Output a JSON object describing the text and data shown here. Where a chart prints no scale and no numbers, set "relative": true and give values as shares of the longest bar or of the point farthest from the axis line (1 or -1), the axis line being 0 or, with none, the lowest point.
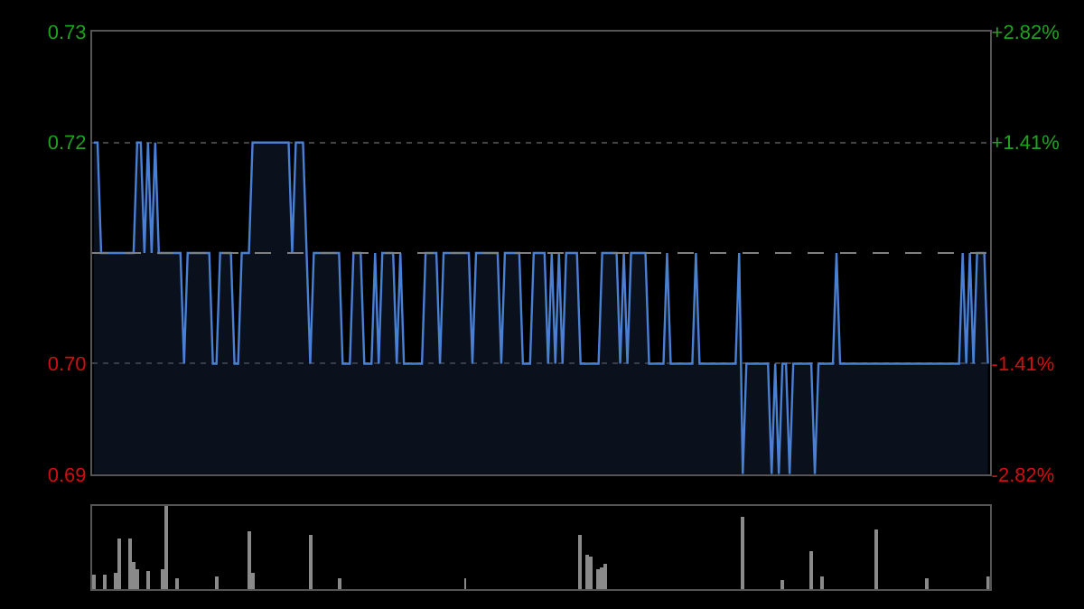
{
  "chart_data": [
    {
      "type": "area",
      "color": "#4a80d4",
      "categories": [
        null,
        null,
        null,
        null,
        null,
        null,
        null,
        null,
        null,
        null,
        null,
        null,
        null,
        null,
        null,
        null,
        null,
        null,
        null,
        null,
        null,
        null,
        null,
        null,
        null,
        null,
        null,
        null,
        null,
        null,
        null,
        null,
        null,
        null,
        null,
        null,
        null,
        null,
        null,
        null,
        null,
        null,
        null,
        null,
        null,
        null,
        null,
        null,
        null,
        null,
        null,
        null,
        null,
        null,
        null,
        null,
        null,
        null,
        null,
        null,
        null,
        null,
        null,
        null,
        null,
        null,
        null,
        null,
        null,
        null,
        null,
        null,
        null,
        null,
        null,
        null,
        null,
        null,
        null,
        null,
        null,
        null,
        null,
        null,
        null,
        null,
        null,
        null,
        null,
        null,
        null,
        null,
        null,
        null,
        null,
        null,
        null,
        null,
        null,
        null,
        null,
        null,
        null,
        null,
        null,
        null,
        null,
        null,
        null,
        null,
        null,
        null,
        null,
        null,
        null,
        null,
        null,
        null,
        null,
        null,
        null,
        null,
        null,
        null,
        null,
        null,
        null,
        null,
        null,
        null,
        null,
        null,
        null,
        null,
        null,
        null,
        null,
        null,
        null,
        null,
        null,
        null,
        null,
        null,
        null,
        null,
        null,
        null,
        null,
        null,
        null,
        null,
        null,
        null,
        null,
        null,
        null,
        null,
        null,
        null,
        null,
        null,
        null,
        null,
        null,
        null,
        null,
        null,
        null,
        null,
        null,
        null,
        null,
        null,
        null,
        null,
        null,
        null,
        null,
        null,
        null,
        null,
        null,
        null,
        null,
        null,
        null,
        null,
        null,
        null,
        null,
        null,
        null,
        null,
        null,
        null,
        null,
        null,
        null,
        null,
        null,
        null,
        null,
        null,
        null,
        null,
        null,
        null,
        null,
        null,
        null,
        null,
        null,
        null,
        null,
        null,
        null,
        null,
        null,
        null,
        null,
        null,
        null,
        null,
        null,
        null,
        null,
        null,
        null,
        null,
        null,
        null,
        null,
        null,
        null,
        null,
        null,
        null,
        null,
        null,
        null,
        null,
        null,
        null,
        null,
        null,
        null,
        null,
        null
      ],
      "values": [
        0.72,
        0.72,
        0.71,
        0.71,
        0.71,
        0.71,
        0.71,
        0.71,
        0.71,
        0.71,
        0.71,
        0.71,
        0.72,
        0.72,
        0.71,
        0.72,
        0.71,
        0.72,
        0.71,
        0.71,
        0.71,
        0.71,
        0.71,
        0.71,
        0.71,
        0.7,
        0.71,
        0.71,
        0.71,
        0.71,
        0.71,
        0.71,
        0.71,
        0.7,
        0.7,
        0.71,
        0.71,
        0.71,
        0.71,
        0.7,
        0.7,
        0.71,
        0.71,
        0.71,
        0.72,
        0.72,
        0.72,
        0.72,
        0.72,
        0.72,
        0.72,
        0.72,
        0.72,
        0.72,
        0.72,
        0.71,
        0.72,
        0.72,
        0.72,
        0.71,
        0.7,
        0.71,
        0.71,
        0.71,
        0.71,
        0.71,
        0.71,
        0.71,
        0.71,
        0.7,
        0.7,
        0.7,
        0.71,
        0.71,
        0.71,
        0.7,
        0.7,
        0.7,
        0.71,
        0.7,
        0.71,
        0.71,
        0.71,
        0.71,
        0.7,
        0.71,
        0.7,
        0.7,
        0.7,
        0.7,
        0.7,
        0.7,
        0.71,
        0.71,
        0.71,
        0.71,
        0.7,
        0.71,
        0.71,
        0.71,
        0.71,
        0.71,
        0.71,
        0.71,
        0.71,
        0.7,
        0.71,
        0.71,
        0.71,
        0.71,
        0.71,
        0.71,
        0.71,
        0.7,
        0.71,
        0.71,
        0.71,
        0.71,
        0.71,
        0.7,
        0.7,
        0.7,
        0.71,
        0.71,
        0.71,
        0.71,
        0.7,
        0.71,
        0.7,
        0.71,
        0.7,
        0.71,
        0.71,
        0.71,
        0.71,
        0.7,
        0.7,
        0.7,
        0.7,
        0.7,
        0.7,
        0.71,
        0.71,
        0.71,
        0.71,
        0.71,
        0.7,
        0.71,
        0.7,
        0.71,
        0.71,
        0.71,
        0.71,
        0.71,
        0.7,
        0.7,
        0.7,
        0.7,
        0.7,
        0.71,
        0.7,
        0.7,
        0.7,
        0.7,
        0.7,
        0.7,
        0.7,
        0.71,
        0.7,
        0.7,
        0.7,
        0.7,
        0.7,
        0.7,
        0.7,
        0.7,
        0.7,
        0.7,
        0.7,
        0.71,
        0.69,
        0.7,
        0.7,
        0.7,
        0.7,
        0.7,
        0.7,
        0.7,
        0.69,
        0.7,
        0.69,
        0.7,
        0.7,
        0.69,
        0.7,
        0.7,
        0.7,
        0.7,
        0.7,
        0.7,
        0.69,
        0.7,
        0.7,
        0.7,
        0.7,
        0.7,
        0.71,
        0.7,
        0.7,
        0.7,
        0.7,
        0.7,
        0.7,
        0.7,
        0.7,
        0.7,
        0.7,
        0.7,
        0.7,
        0.7,
        0.7,
        0.7,
        0.7,
        0.7,
        0.7,
        0.7,
        0.7,
        0.7,
        0.7,
        0.7,
        0.7,
        0.7,
        0.7,
        0.7,
        0.7,
        0.7,
        0.7,
        0.7,
        0.7,
        0.7,
        0.7,
        0.71,
        0.7,
        0.71,
        0.7,
        0.71,
        0.71,
        0.71,
        0.7
      ],
      "ylim": [
        0.69,
        0.73
      ],
      "yticks": [
        {
          "value": 0.73,
          "label": "0.73"
        },
        {
          "value": 0.72,
          "label": "0.72"
        },
        {
          "value": 0.7,
          "label": "0.70"
        },
        {
          "value": 0.69,
          "label": "0.69"
        }
      ],
      "y2lim": [
        -2.82,
        2.82
      ],
      "y2ticks": [
        {
          "value": 2.82,
          "label": "+2.82%"
        },
        {
          "value": 1.41,
          "label": "+1.41%"
        },
        {
          "value": -1.41,
          "label": "-1.41%"
        },
        {
          "value": -2.82,
          "label": "-2.82%"
        }
      ],
      "ref_lines": [
        {
          "axis": "y",
          "value": 0.71,
          "color": "#808080",
          "line_style": "dashed"
        }
      ],
      "grid": "y"
    },
    {
      "type": "bar",
      "relative": true,
      "color": "#8a8a8a",
      "categories": [
        null,
        null,
        null,
        null,
        null,
        null,
        null,
        null,
        null,
        null,
        null,
        null,
        null,
        null,
        null,
        null,
        null,
        null,
        null,
        null,
        null,
        null,
        null,
        null,
        null,
        null,
        null,
        null,
        null,
        null,
        null,
        null,
        null,
        null,
        null,
        null,
        null,
        null,
        null,
        null,
        null,
        null,
        null,
        null,
        null,
        null,
        null,
        null,
        null,
        null,
        null,
        null,
        null,
        null,
        null,
        null,
        null,
        null,
        null,
        null,
        null,
        null,
        null,
        null,
        null,
        null,
        null,
        null,
        null,
        null,
        null,
        null,
        null,
        null,
        null,
        null,
        null,
        null,
        null,
        null,
        null,
        null,
        null,
        null,
        null,
        null,
        null,
        null,
        null,
        null,
        null,
        null,
        null,
        null,
        null,
        null,
        null,
        null,
        null,
        null,
        null,
        null,
        null,
        null,
        null,
        null,
        null,
        null,
        null,
        null,
        null,
        null,
        null,
        null,
        null,
        null,
        null,
        null,
        null,
        null,
        null,
        null,
        null,
        null,
        null,
        null,
        null,
        null,
        null,
        null,
        null,
        null,
        null,
        null,
        null,
        null,
        null,
        null,
        null,
        null,
        null,
        null,
        null,
        null,
        null,
        null,
        null,
        null,
        null,
        null,
        null,
        null,
        null,
        null,
        null,
        null,
        null,
        null,
        null,
        null,
        null,
        null,
        null,
        null,
        null,
        null,
        null,
        null,
        null,
        null,
        null,
        null,
        null,
        null,
        null,
        null,
        null,
        null,
        null,
        null,
        null,
        null,
        null,
        null,
        null,
        null,
        null,
        null,
        null,
        null,
        null,
        null,
        null,
        null,
        null,
        null,
        null,
        null,
        null,
        null,
        null,
        null,
        null,
        null,
        null,
        null,
        null,
        null,
        null,
        null,
        null,
        null,
        null,
        null,
        null,
        null,
        null,
        null,
        null,
        null,
        null,
        null,
        null,
        null,
        null,
        null,
        null,
        null,
        null,
        null,
        null,
        null,
        null,
        null,
        null,
        null,
        null,
        null,
        null,
        null,
        null,
        null,
        null,
        null,
        null,
        null,
        null,
        null,
        null
      ],
      "values": [
        0.17,
        null,
        null,
        0.17,
        null,
        null,
        0.2,
        0.62,
        null,
        null,
        0.6,
        0.32,
        0.25,
        null,
        null,
        0.22,
        null,
        null,
        null,
        0.25,
        1.0,
        null,
        null,
        0.13,
        null,
        null,
        null,
        null,
        null,
        null,
        null,
        null,
        null,
        null,
        0.15,
        null,
        null,
        null,
        null,
        null,
        null,
        null,
        null,
        0.7,
        0.2,
        null,
        null,
        null,
        null,
        null,
        null,
        null,
        null,
        null,
        null,
        null,
        null,
        null,
        null,
        null,
        0.65,
        null,
        null,
        null,
        null,
        null,
        null,
        null,
        0.13,
        null,
        null,
        null,
        null,
        null,
        null,
        null,
        null,
        null,
        null,
        null,
        null,
        null,
        null,
        null,
        null,
        null,
        null,
        null,
        null,
        null,
        null,
        null,
        null,
        null,
        null,
        null,
        null,
        null,
        null,
        null,
        null,
        null,
        null,
        0.13,
        null,
        null,
        null,
        null,
        null,
        null,
        null,
        null,
        null,
        null,
        null,
        null,
        null,
        null,
        null,
        null,
        null,
        null,
        null,
        null,
        null,
        null,
        null,
        null,
        null,
        null,
        null,
        null,
        null,
        null,
        null,
        0.65,
        null,
        0.42,
        0.4,
        null,
        0.25,
        0.27,
        0.3,
        null,
        null,
        null,
        null,
        null,
        null,
        null,
        null,
        null,
        null,
        null,
        null,
        null,
        null,
        null,
        null,
        null,
        null,
        null,
        null,
        null,
        null,
        null,
        null,
        null,
        null,
        null,
        null,
        null,
        null,
        null,
        null,
        null,
        null,
        null,
        null,
        null,
        0.87,
        null,
        null,
        null,
        null,
        null,
        null,
        null,
        null,
        null,
        null,
        0.12,
        null,
        null,
        null,
        null,
        null,
        null,
        null,
        0.45,
        null,
        null,
        0.16,
        null,
        null,
        null,
        null,
        null,
        null,
        null,
        null,
        null,
        null,
        null,
        null,
        null,
        null,
        0.71,
        null,
        null,
        null,
        null,
        null,
        null,
        null,
        null,
        null,
        null,
        null,
        null,
        null,
        0.14,
        null,
        null,
        null,
        null,
        null,
        null,
        null,
        null,
        null,
        null,
        null,
        null,
        null,
        null,
        null,
        null,
        0.15
      ]
    }
  ]
}
